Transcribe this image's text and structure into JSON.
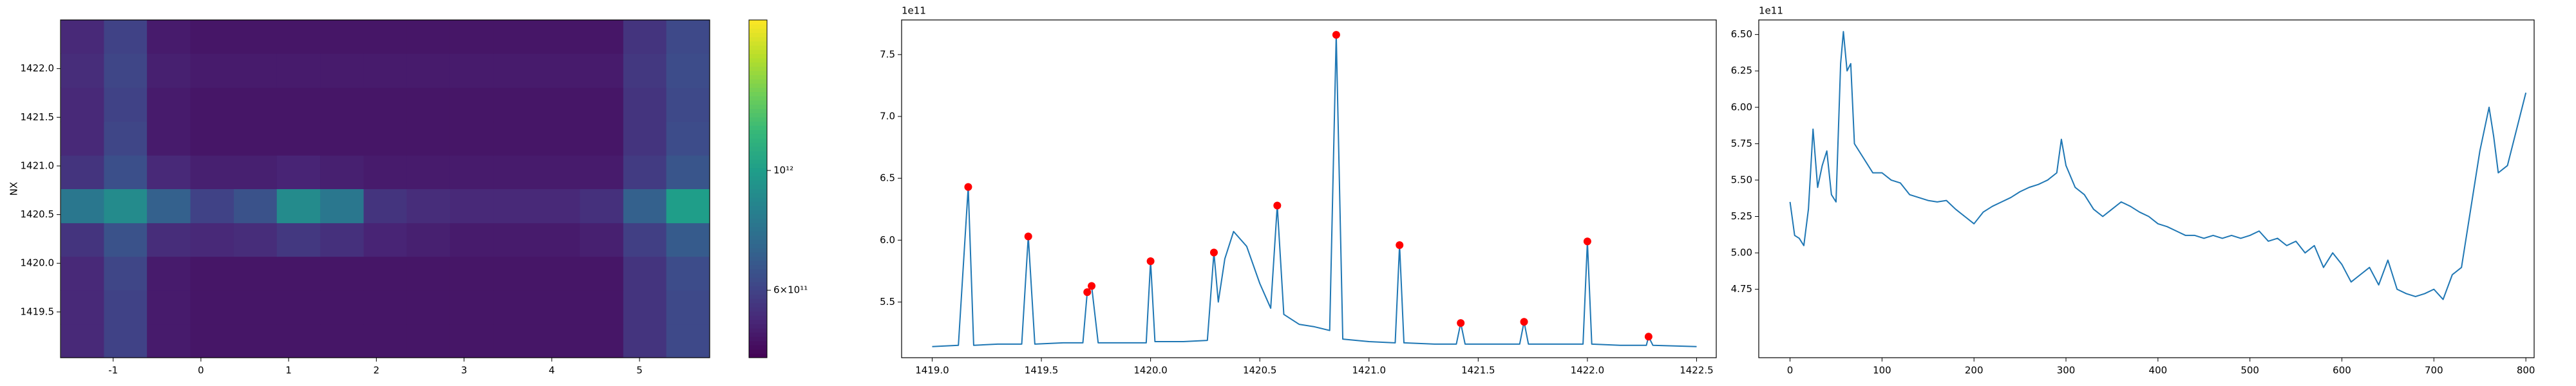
{
  "chart_data": [
    {
      "type": "heatmap",
      "ylabel": "NX",
      "colormap": "viridis",
      "log_color": true,
      "xlim": [
        -1.6,
        5.8
      ],
      "xticks": [
        -1,
        0,
        1,
        2,
        3,
        4,
        5
      ],
      "ylim": [
        1419.03,
        1422.5
      ],
      "yticks": [
        1419.5,
        {
          "value": 1420,
          "label": "1420.0"
        },
        1420.5,
        {
          "value": 1421,
          "label": "1421.0"
        },
        1421.5,
        {
          "value": 1422,
          "label": "1422.0"
        }
      ],
      "x": [
        -1.35,
        -0.86,
        -0.37,
        0.13,
        0.62,
        1.11,
        1.61,
        2.1,
        2.59,
        3.09,
        3.58,
        4.07,
        4.57,
        5.06,
        5.55
      ],
      "y": [
        1419.2,
        1419.55,
        1419.9,
        1420.24,
        1420.59,
        1420.94,
        1421.28,
        1421.63,
        1421.98,
        1422.33
      ],
      "zlim": [
        450000000000,
        1900000000000
      ],
      "colorbar_ticks": [
        {
          "value": 1000000000000,
          "label": "10¹²"
        },
        {
          "value": 600000000000,
          "label": "6×10¹¹"
        }
      ],
      "z": [
        [
          530000000000.0,
          600000000000.0,
          500000000000.0,
          490000000000.0,
          490000000000.0,
          490000000000.0,
          490000000000.0,
          490000000000.0,
          490000000000.0,
          490000000000.0,
          490000000000.0,
          490000000000.0,
          490000000000.0,
          560000000000.0,
          620000000000.0
        ],
        [
          530000000000.0,
          600000000000.0,
          500000000000.0,
          490000000000.0,
          490000000000.0,
          490000000000.0,
          490000000000.0,
          490000000000.0,
          490000000000.0,
          490000000000.0,
          490000000000.0,
          490000000000.0,
          490000000000.0,
          560000000000.0,
          620000000000.0
        ],
        [
          530000000000.0,
          610000000000.0,
          500000000000.0,
          490000000000.0,
          490000000000.0,
          490000000000.0,
          490000000000.0,
          490000000000.0,
          490000000000.0,
          490000000000.0,
          490000000000.0,
          490000000000.0,
          490000000000.0,
          560000000000.0,
          630000000000.0
        ],
        [
          560000000000.0,
          650000000000.0,
          540000000000.0,
          530000000000.0,
          540000000000.0,
          570000000000.0,
          550000000000.0,
          520000000000.0,
          510000000000.0,
          500000000000.0,
          500000000000.0,
          500000000000.0,
          510000000000.0,
          590000000000.0,
          680000000000.0
        ],
        [
          800000000000.0,
          900000000000.0,
          700000000000.0,
          600000000000.0,
          650000000000.0,
          900000000000.0,
          800000000000.0,
          560000000000.0,
          540000000000.0,
          530000000000.0,
          530000000000.0,
          530000000000.0,
          550000000000.0,
          700000000000.0,
          1000000000000.0
        ],
        [
          560000000000.0,
          640000000000.0,
          530000000000.0,
          510000000000.0,
          510000000000.0,
          520000000000.0,
          510000000000.0,
          500000000000.0,
          500000000000.0,
          500000000000.0,
          500000000000.0,
          500000000000.0,
          500000000000.0,
          580000000000.0,
          660000000000.0
        ],
        [
          530000000000.0,
          610000000000.0,
          500000000000.0,
          490000000000.0,
          490000000000.0,
          490000000000.0,
          490000000000.0,
          490000000000.0,
          490000000000.0,
          490000000000.0,
          490000000000.0,
          490000000000.0,
          490000000000.0,
          560000000000.0,
          630000000000.0
        ],
        [
          530000000000.0,
          600000000000.0,
          500000000000.0,
          490000000000.0,
          490000000000.0,
          490000000000.0,
          490000000000.0,
          490000000000.0,
          490000000000.0,
          490000000000.0,
          490000000000.0,
          490000000000.0,
          490000000000.0,
          560000000000.0,
          620000000000.0
        ],
        [
          540000000000.0,
          610000000000.0,
          510000000000.0,
          500000000000.0,
          500000000000.0,
          500000000000.0,
          500000000000.0,
          500000000000.0,
          500000000000.0,
          500000000000.0,
          500000000000.0,
          500000000000.0,
          500000000000.0,
          570000000000.0,
          630000000000.0
        ],
        [
          530000000000.0,
          600000000000.0,
          500000000000.0,
          490000000000.0,
          490000000000.0,
          490000000000.0,
          490000000000.0,
          490000000000.0,
          490000000000.0,
          490000000000.0,
          490000000000.0,
          490000000000.0,
          490000000000.0,
          560000000000.0,
          620000000000.0
        ]
      ]
    },
    {
      "type": "line",
      "offset_label": "1e11",
      "xlim": [
        1418.86,
        1422.59
      ],
      "xticks": [
        {
          "value": 1419,
          "label": "1419.0"
        },
        1419.5,
        {
          "value": 1420,
          "label": "1420.0"
        },
        1420.5,
        {
          "value": 1421,
          "label": "1421.0"
        },
        1421.5,
        {
          "value": 1422,
          "label": "1422.0"
        },
        1422.5
      ],
      "ylim": [
        5.05,
        7.78
      ],
      "yticks": [
        5.5,
        {
          "value": 6,
          "label": "6.0"
        },
        6.5,
        {
          "value": 7,
          "label": "7.0"
        },
        7.5
      ],
      "series": [
        {
          "color": "#1f77b4",
          "x": [
            1419.0,
            1419.12,
            1419.165,
            1419.19,
            1419.3,
            1419.41,
            1419.44,
            1419.47,
            1419.6,
            1419.69,
            1419.71,
            1419.73,
            1419.76,
            1419.9,
            1419.98,
            1420.0,
            1420.02,
            1420.15,
            1420.26,
            1420.29,
            1420.31,
            1420.34,
            1420.38,
            1420.44,
            1420.5,
            1420.55,
            1420.58,
            1420.61,
            1420.68,
            1420.75,
            1420.82,
            1420.85,
            1420.88,
            1421.0,
            1421.12,
            1421.14,
            1421.16,
            1421.3,
            1421.4,
            1421.42,
            1421.44,
            1421.6,
            1421.69,
            1421.71,
            1421.73,
            1421.9,
            1421.98,
            1422.0,
            1422.02,
            1422.15,
            1422.27,
            1422.28,
            1422.3,
            1422.5
          ],
          "values": [
            5.14,
            5.15,
            6.43,
            5.15,
            5.16,
            5.16,
            6.03,
            5.16,
            5.17,
            5.17,
            5.58,
            5.63,
            5.17,
            5.17,
            5.17,
            5.83,
            5.18,
            5.18,
            5.19,
            5.9,
            5.5,
            5.85,
            6.07,
            5.95,
            5.65,
            5.45,
            6.28,
            5.4,
            5.32,
            5.3,
            5.27,
            7.66,
            5.2,
            5.18,
            5.17,
            5.96,
            5.17,
            5.16,
            5.16,
            5.33,
            5.16,
            5.16,
            5.16,
            5.34,
            5.16,
            5.16,
            5.16,
            5.99,
            5.16,
            5.15,
            5.15,
            5.22,
            5.15,
            5.14
          ]
        },
        {
          "color": "#ff0000",
          "marker": "circle",
          "linestyle": "none",
          "x": [
            1419.165,
            1419.44,
            1419.71,
            1419.73,
            1420.0,
            1420.29,
            1420.58,
            1420.85,
            1421.14,
            1421.42,
            1421.71,
            1422.0,
            1422.28
          ],
          "values": [
            6.43,
            6.03,
            5.58,
            5.63,
            5.83,
            5.9,
            6.28,
            7.66,
            5.96,
            5.33,
            5.34,
            5.99,
            5.22
          ]
        }
      ]
    },
    {
      "type": "line",
      "offset_label": "1e11",
      "xlim": [
        -34,
        809
      ],
      "xticks": [
        0,
        100,
        200,
        300,
        400,
        500,
        600,
        700,
        800
      ],
      "ylim": [
        4.28,
        6.6
      ],
      "yticks": [
        4.75,
        {
          "value": 5,
          "label": "5.00"
        },
        5.25,
        {
          "value": 5.5,
          "label": "5.50"
        },
        5.75,
        {
          "value": 6,
          "label": "6.00"
        },
        6.25,
        {
          "value": 6.5,
          "label": "6.50"
        }
      ],
      "series": [
        {
          "color": "#1f77b4",
          "x": [
            0,
            5,
            10,
            15,
            20,
            25,
            30,
            35,
            40,
            45,
            50,
            55,
            58,
            62,
            66,
            70,
            80,
            90,
            100,
            110,
            120,
            130,
            140,
            150,
            160,
            170,
            180,
            190,
            200,
            210,
            220,
            230,
            240,
            250,
            260,
            270,
            280,
            290,
            295,
            300,
            310,
            320,
            330,
            340,
            350,
            360,
            370,
            380,
            390,
            400,
            410,
            420,
            430,
            440,
            450,
            460,
            470,
            480,
            490,
            500,
            510,
            520,
            530,
            540,
            550,
            560,
            570,
            580,
            590,
            600,
            610,
            620,
            630,
            640,
            650,
            660,
            670,
            680,
            690,
            700,
            710,
            720,
            730,
            740,
            750,
            760,
            765,
            770,
            780,
            790,
            800
          ],
          "values": [
            5.35,
            5.12,
            5.1,
            5.05,
            5.3,
            5.85,
            5.45,
            5.6,
            5.7,
            5.4,
            5.35,
            6.3,
            6.52,
            6.25,
            6.3,
            5.75,
            5.65,
            5.55,
            5.55,
            5.5,
            5.48,
            5.4,
            5.38,
            5.36,
            5.35,
            5.36,
            5.3,
            5.25,
            5.2,
            5.28,
            5.32,
            5.35,
            5.38,
            5.42,
            5.45,
            5.47,
            5.5,
            5.55,
            5.78,
            5.6,
            5.45,
            5.4,
            5.3,
            5.25,
            5.3,
            5.35,
            5.32,
            5.28,
            5.25,
            5.2,
            5.18,
            5.15,
            5.12,
            5.12,
            5.1,
            5.12,
            5.1,
            5.12,
            5.1,
            5.12,
            5.15,
            5.08,
            5.1,
            5.05,
            5.08,
            5.0,
            5.05,
            4.9,
            5.0,
            4.92,
            4.8,
            4.85,
            4.9,
            4.78,
            4.95,
            4.75,
            4.72,
            4.7,
            4.72,
            4.75,
            4.68,
            4.85,
            4.9,
            5.3,
            5.7,
            6.0,
            5.8,
            5.55,
            5.6,
            5.85,
            6.1
          ]
        }
      ]
    }
  ]
}
